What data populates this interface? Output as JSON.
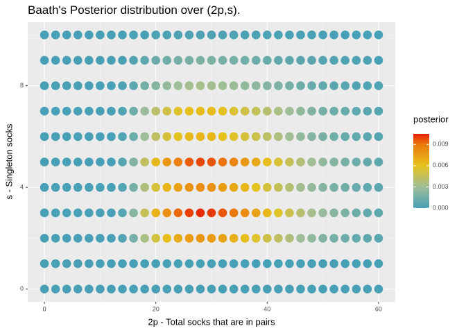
{
  "chart_data": {
    "type": "scatter",
    "title": "Baath's Posterior distribution over (2p,s).",
    "x_label": "2p - Total socks that are in pairs",
    "y_label": "s - Singleton socks",
    "legend_title": "posterior",
    "x": [
      0,
      2,
      4,
      6,
      8,
      10,
      12,
      14,
      16,
      18,
      20,
      22,
      24,
      26,
      28,
      30,
      32,
      34,
      36,
      38,
      40,
      42,
      44,
      46,
      48,
      50,
      52,
      54,
      56,
      58,
      60
    ],
    "y": [
      0,
      1,
      2,
      3,
      4,
      5,
      6,
      7,
      8,
      9,
      10
    ],
    "values": [
      [
        0,
        0,
        0,
        0,
        0,
        0,
        0,
        0,
        0,
        0,
        0,
        0,
        0,
        0,
        0,
        0,
        0,
        0,
        0,
        0,
        0,
        0,
        0,
        0,
        0,
        0,
        0,
        0,
        0,
        0,
        0
      ],
      [
        0,
        0,
        0,
        0,
        0,
        0,
        0,
        0,
        0,
        0,
        0,
        0,
        0,
        0,
        0,
        0,
        0,
        0,
        0,
        0,
        0,
        0,
        0,
        0,
        0,
        0,
        0,
        0,
        0,
        0,
        0
      ],
      [
        0,
        0,
        0,
        0,
        0,
        0,
        0,
        0.0004,
        0.0016,
        0.0035,
        0.0051,
        0.0062,
        0.007,
        0.0076,
        0.0078,
        0.0076,
        0.0073,
        0.0068,
        0.0062,
        0.0056,
        0.0049,
        0.0043,
        0.0037,
        0.003,
        0.0025,
        0.002,
        0.0016,
        0.0013,
        0.001,
        0.0008,
        0.0006
      ],
      [
        0,
        0,
        0,
        0,
        0,
        0,
        0,
        0.0005,
        0.0021,
        0.0046,
        0.0067,
        0.0082,
        0.0093,
        0.01,
        0.0103,
        0.0101,
        0.0096,
        0.009,
        0.0082,
        0.0074,
        0.0065,
        0.0057,
        0.0048,
        0.004,
        0.0033,
        0.0027,
        0.0022,
        0.0018,
        0.0013,
        0.001,
        0.0008
      ],
      [
        0,
        0,
        0,
        0,
        0,
        0,
        0,
        0.0004,
        0.0016,
        0.0037,
        0.0053,
        0.0066,
        0.0074,
        0.008,
        0.0082,
        0.008,
        0.0076,
        0.0071,
        0.0066,
        0.0059,
        0.0052,
        0.0045,
        0.0039,
        0.0032,
        0.0026,
        0.0021,
        0.0017,
        0.0014,
        0.0011,
        0.0008,
        0.0007
      ],
      [
        0,
        0,
        0,
        0,
        0,
        0,
        0,
        0.0005,
        0.002,
        0.0044,
        0.0064,
        0.0078,
        0.0088,
        0.0095,
        0.0098,
        0.0096,
        0.0091,
        0.0085,
        0.0078,
        0.0071,
        0.0062,
        0.0054,
        0.0046,
        0.0038,
        0.0031,
        0.0025,
        0.0021,
        0.0017,
        0.0013,
        0.001,
        0.0008
      ],
      [
        0,
        0,
        0,
        0,
        0,
        0,
        0,
        0.0003,
        0.0013,
        0.003,
        0.0043,
        0.0053,
        0.0059,
        0.0064,
        0.0066,
        0.0065,
        0.0061,
        0.0057,
        0.0053,
        0.0048,
        0.0042,
        0.0036,
        0.0031,
        0.0026,
        0.0021,
        0.0017,
        0.0014,
        0.0011,
        0.0009,
        0.0007,
        0.0005
      ],
      [
        0,
        0,
        0,
        0,
        0,
        0,
        0,
        0.0003,
        0.0013,
        0.0028,
        0.0041,
        0.005,
        0.0057,
        0.0061,
        0.0063,
        0.0062,
        0.0059,
        0.0055,
        0.005,
        0.0045,
        0.004,
        0.0035,
        0.003,
        0.0025,
        0.002,
        0.0016,
        0.0013,
        0.0011,
        0.0008,
        0.0006,
        0.0005
      ],
      [
        0,
        0,
        0,
        0,
        0,
        0,
        0,
        0.0002,
        0.0007,
        0.0015,
        0.0021,
        0.0026,
        0.003,
        0.0032,
        0.0033,
        0.0032,
        0.0031,
        0.0029,
        0.0026,
        0.0024,
        0.0021,
        0.0018,
        0.0016,
        0.0013,
        0.0011,
        0.0009,
        0.0007,
        0.0006,
        0.0004,
        0.0003,
        0.0003
      ],
      [
        0,
        0,
        0,
        0,
        0,
        0,
        0,
        0.0001,
        0.0004,
        0.0008,
        0.0012,
        0.0014,
        0.0016,
        0.0017,
        0.0018,
        0.0018,
        0.0017,
        0.0016,
        0.0014,
        0.0013,
        0.0011,
        0.001,
        0.0008,
        0.0007,
        0.0006,
        0.0005,
        0.0004,
        0.0003,
        0.0002,
        0.0002,
        0.0001
      ],
      [
        0,
        0,
        0,
        0,
        0,
        0,
        0,
        0,
        0.0001,
        0.0001,
        0.0002,
        0.0002,
        0.0003,
        0.0003,
        0.0003,
        0.0003,
        0.0003,
        0.0003,
        0.0002,
        0.0002,
        0.0002,
        0.0002,
        0.0001,
        0.0001,
        0.0001,
        0.0001,
        0.0001,
        0,
        0,
        0,
        0
      ]
    ],
    "xlim": [
      -3,
      63
    ],
    "ylim": [
      -0.5,
      10.5
    ],
    "xticks": [
      0,
      20,
      40,
      60
    ],
    "yticks": [
      0,
      4,
      8
    ],
    "grid": true,
    "legend_position": "right",
    "color_limits": [
      0,
      0.0105
    ],
    "colorscale": [
      {
        "value": 0,
        "color": "#47a0b6"
      },
      {
        "value": 0.003,
        "color": "#9fbd98"
      },
      {
        "value": 0.006,
        "color": "#e6c21c"
      },
      {
        "value": 0.009,
        "color": "#eb7a0c"
      },
      {
        "value": 0.0105,
        "color": "#e81f00"
      }
    ],
    "legend_ticks": [
      {
        "value": 0,
        "label": "0.000"
      },
      {
        "value": 0.003,
        "label": "0.003"
      },
      {
        "value": 0.006,
        "label": "0.006"
      },
      {
        "value": 0.009,
        "label": "0.009"
      }
    ]
  }
}
